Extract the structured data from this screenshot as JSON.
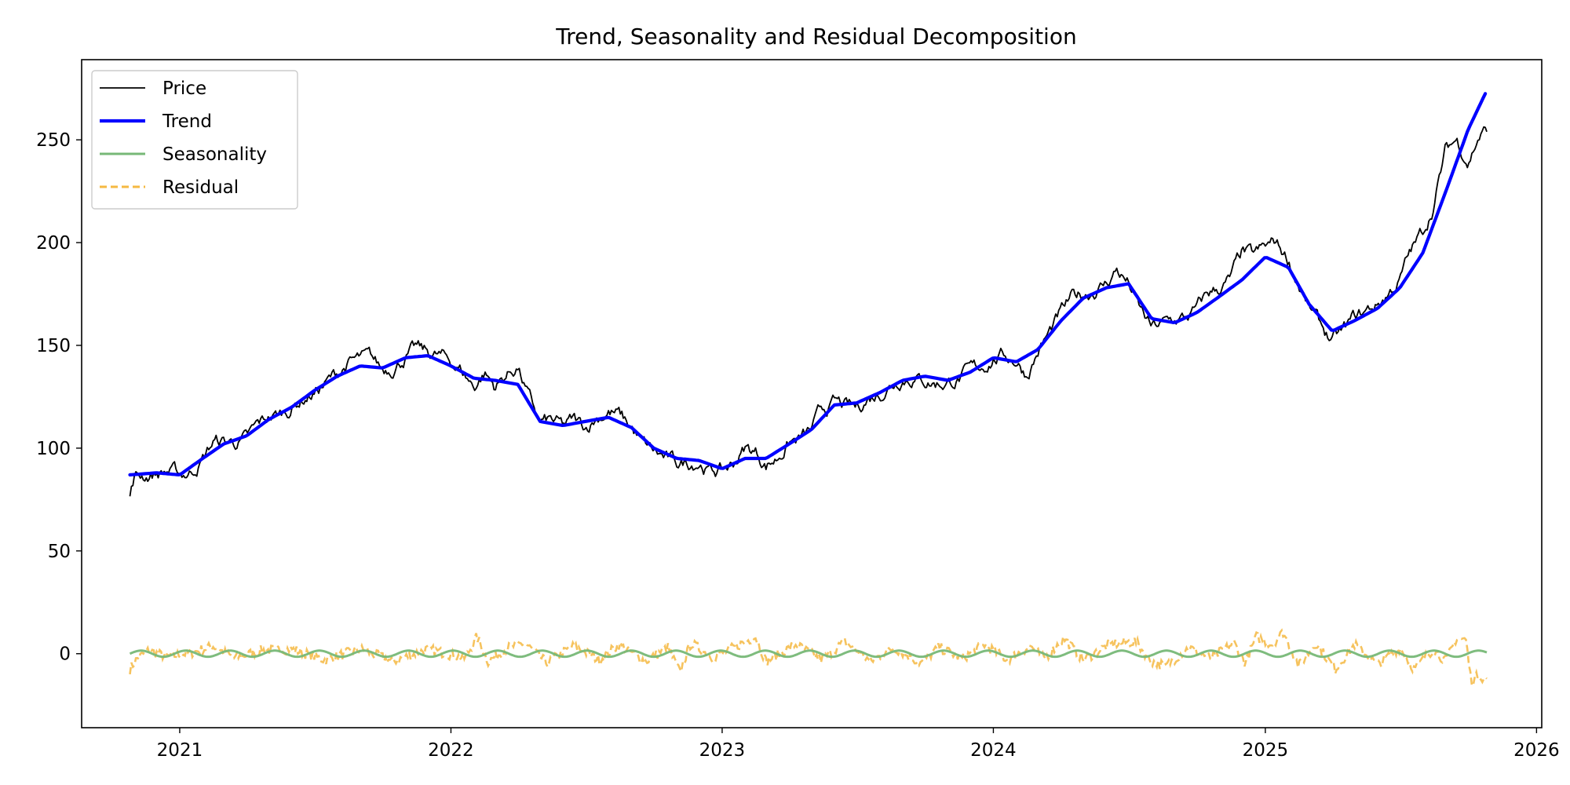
{
  "chart_data": {
    "type": "line",
    "title": "Trend, Seasonality and Residual Decomposition",
    "xlabel": "",
    "ylabel": "",
    "x_ticks": [
      "2021",
      "2022",
      "2023",
      "2024",
      "2025",
      "2026"
    ],
    "y_ticks": [
      "0",
      "50",
      "100",
      "150",
      "200",
      "250"
    ],
    "xlim": [
      "2020-08-22",
      "2026-01-08"
    ],
    "ylim": [
      -36,
      289
    ],
    "grid": false,
    "legend_position": "upper-left",
    "colors": {
      "price": "#000000",
      "trend": "#0000ff",
      "seasonality": "#77b877",
      "residual": "#f5b942"
    },
    "series": [
      {
        "name": "Price",
        "style": "solid",
        "points": [
          [
            "2020-10-26",
            77
          ],
          [
            "2020-10-28",
            80
          ],
          [
            "2020-11-01",
            86
          ],
          [
            "2020-11-15",
            86.8
          ],
          [
            "2020-12-01",
            88
          ],
          [
            "2020-12-15",
            89
          ],
          [
            "2021-01-01",
            87
          ],
          [
            "2021-01-15",
            88
          ],
          [
            "2021-02-01",
            95
          ],
          [
            "2021-02-15",
            103
          ],
          [
            "2021-03-01",
            103
          ],
          [
            "2021-03-15",
            103
          ],
          [
            "2021-04-01",
            104
          ],
          [
            "2021-04-15",
            110
          ],
          [
            "2021-05-01",
            115
          ],
          [
            "2021-05-15",
            116
          ],
          [
            "2021-06-01",
            120
          ],
          [
            "2021-06-15",
            124
          ],
          [
            "2021-07-01",
            127
          ],
          [
            "2021-07-15",
            131
          ],
          [
            "2021-08-01",
            136
          ],
          [
            "2021-08-15",
            141
          ],
          [
            "2021-09-01",
            143
          ],
          [
            "2021-09-15",
            143
          ],
          [
            "2021-10-01",
            138
          ],
          [
            "2021-10-15",
            140
          ],
          [
            "2021-11-01",
            145
          ],
          [
            "2021-11-15",
            148
          ],
          [
            "2021-12-01",
            146
          ],
          [
            "2021-12-15",
            145
          ],
          [
            "2022-01-01",
            142
          ],
          [
            "2022-01-15",
            138
          ],
          [
            "2022-02-01",
            130
          ],
          [
            "2022-02-15",
            137
          ],
          [
            "2022-03-01",
            130
          ],
          [
            "2022-03-15",
            135
          ],
          [
            "2022-04-01",
            140
          ],
          [
            "2022-04-15",
            125
          ],
          [
            "2022-05-01",
            112
          ],
          [
            "2022-05-15",
            113
          ],
          [
            "2022-06-01",
            110
          ],
          [
            "2022-06-15",
            113
          ],
          [
            "2022-07-01",
            110
          ],
          [
            "2022-07-15",
            115
          ],
          [
            "2022-08-01",
            118
          ],
          [
            "2022-08-15",
            116
          ],
          [
            "2022-09-01",
            110
          ],
          [
            "2022-09-15",
            102
          ],
          [
            "2022-10-01",
            98
          ],
          [
            "2022-10-15",
            95
          ],
          [
            "2022-11-01",
            92
          ],
          [
            "2022-11-15",
            93
          ],
          [
            "2022-12-01",
            94
          ],
          [
            "2022-12-15",
            89
          ],
          [
            "2023-01-01",
            89
          ],
          [
            "2023-01-15",
            92
          ],
          [
            "2023-02-01",
            100
          ],
          [
            "2023-02-15",
            98
          ],
          [
            "2023-03-01",
            92
          ],
          [
            "2023-03-15",
            95
          ],
          [
            "2023-04-01",
            103
          ],
          [
            "2023-04-15",
            104
          ],
          [
            "2023-05-01",
            108
          ],
          [
            "2023-05-15",
            118
          ],
          [
            "2023-06-01",
            122
          ],
          [
            "2023-06-15",
            120
          ],
          [
            "2023-07-01",
            119
          ],
          [
            "2023-07-15",
            124
          ],
          [
            "2023-08-01",
            127
          ],
          [
            "2023-08-15",
            131
          ],
          [
            "2023-09-01",
            135
          ],
          [
            "2023-09-15",
            135
          ],
          [
            "2023-10-01",
            133
          ],
          [
            "2023-10-15",
            132
          ],
          [
            "2023-11-01",
            132
          ],
          [
            "2023-11-15",
            134
          ],
          [
            "2023-12-01",
            137
          ],
          [
            "2023-12-15",
            139
          ],
          [
            "2024-01-01",
            144
          ],
          [
            "2024-01-15",
            145
          ],
          [
            "2024-02-01",
            143
          ],
          [
            "2024-02-15",
            136
          ],
          [
            "2024-03-01",
            147
          ],
          [
            "2024-03-15",
            155
          ],
          [
            "2024-04-01",
            165
          ],
          [
            "2024-04-15",
            172
          ],
          [
            "2024-05-01",
            175
          ],
          [
            "2024-05-15",
            177
          ],
          [
            "2024-06-01",
            180
          ],
          [
            "2024-06-15",
            187
          ],
          [
            "2024-07-01",
            180
          ],
          [
            "2024-07-15",
            168
          ],
          [
            "2024-08-01",
            158
          ],
          [
            "2024-08-15",
            160
          ],
          [
            "2024-09-01",
            162
          ],
          [
            "2024-09-15",
            163
          ],
          [
            "2024-10-01",
            167
          ],
          [
            "2024-10-15",
            175
          ],
          [
            "2024-11-01",
            178
          ],
          [
            "2024-11-15",
            182
          ],
          [
            "2024-12-01",
            195
          ],
          [
            "2024-12-15",
            193
          ],
          [
            "2025-01-01",
            197
          ],
          [
            "2025-01-15",
            200
          ],
          [
            "2025-02-01",
            192
          ],
          [
            "2025-02-15",
            180
          ],
          [
            "2025-03-01",
            168
          ],
          [
            "2025-03-15",
            160
          ],
          [
            "2025-04-01",
            152
          ],
          [
            "2025-04-15",
            156
          ],
          [
            "2025-05-01",
            163
          ],
          [
            "2025-05-15",
            166
          ],
          [
            "2025-06-01",
            170
          ],
          [
            "2025-06-15",
            175
          ],
          [
            "2025-07-01",
            182
          ],
          [
            "2025-07-15",
            195
          ],
          [
            "2025-08-01",
            205
          ],
          [
            "2025-08-15",
            218
          ],
          [
            "2025-09-01",
            245
          ],
          [
            "2025-09-15",
            250
          ],
          [
            "2025-10-01",
            240
          ],
          [
            "2025-10-15",
            252
          ],
          [
            "2025-10-26",
            255
          ]
        ]
      },
      {
        "name": "Trend",
        "style": "solid",
        "points": [
          [
            "2020-10-26",
            87
          ],
          [
            "2020-12-01",
            88
          ],
          [
            "2021-01-01",
            87
          ],
          [
            "2021-02-01",
            95
          ],
          [
            "2021-03-01",
            102
          ],
          [
            "2021-04-01",
            106
          ],
          [
            "2021-05-01",
            114
          ],
          [
            "2021-06-01",
            120
          ],
          [
            "2021-07-01",
            128
          ],
          [
            "2021-08-01",
            135
          ],
          [
            "2021-09-01",
            140
          ],
          [
            "2021-10-01",
            139
          ],
          [
            "2021-11-01",
            144
          ],
          [
            "2021-12-01",
            145
          ],
          [
            "2022-01-01",
            140
          ],
          [
            "2022-02-01",
            134
          ],
          [
            "2022-03-01",
            133
          ],
          [
            "2022-04-01",
            131
          ],
          [
            "2022-05-01",
            113
          ],
          [
            "2022-06-01",
            111
          ],
          [
            "2022-07-01",
            113
          ],
          [
            "2022-08-01",
            115
          ],
          [
            "2022-09-01",
            110
          ],
          [
            "2022-10-01",
            100
          ],
          [
            "2022-11-01",
            95
          ],
          [
            "2022-12-01",
            94
          ],
          [
            "2023-01-01",
            90
          ],
          [
            "2023-02-01",
            95
          ],
          [
            "2023-03-01",
            95
          ],
          [
            "2023-04-01",
            102
          ],
          [
            "2023-05-01",
            109
          ],
          [
            "2023-06-01",
            121
          ],
          [
            "2023-07-01",
            122
          ],
          [
            "2023-08-01",
            127
          ],
          [
            "2023-09-01",
            133
          ],
          [
            "2023-10-01",
            135
          ],
          [
            "2023-11-01",
            133
          ],
          [
            "2023-12-01",
            137
          ],
          [
            "2024-01-01",
            144
          ],
          [
            "2024-02-01",
            142
          ],
          [
            "2024-03-01",
            148
          ],
          [
            "2024-04-01",
            162
          ],
          [
            "2024-05-01",
            173
          ],
          [
            "2024-06-01",
            178
          ],
          [
            "2024-07-01",
            180
          ],
          [
            "2024-08-01",
            163
          ],
          [
            "2024-09-01",
            161
          ],
          [
            "2024-10-01",
            166
          ],
          [
            "2024-11-01",
            174
          ],
          [
            "2024-12-01",
            182
          ],
          [
            "2025-01-01",
            193
          ],
          [
            "2025-02-01",
            188
          ],
          [
            "2025-03-01",
            170
          ],
          [
            "2025-04-01",
            157
          ],
          [
            "2025-05-01",
            162
          ],
          [
            "2025-06-01",
            168
          ],
          [
            "2025-07-01",
            178
          ],
          [
            "2025-08-01",
            195
          ],
          [
            "2025-09-01",
            225
          ],
          [
            "2025-10-01",
            255
          ],
          [
            "2025-10-26",
            274
          ]
        ]
      },
      {
        "name": "Seasonality",
        "style": "solid",
        "amplitude": 1.5,
        "period_days": 60,
        "range": [
          "2020-10-26",
          "2025-10-26"
        ]
      },
      {
        "name": "Residual",
        "style": "dashed",
        "points": [
          [
            "2020-10-26",
            -10
          ],
          [
            "2020-11-05",
            -3
          ],
          [
            "2020-11-20",
            2
          ],
          [
            "2020-12-15",
            -2
          ],
          [
            "2021-01-20",
            1
          ],
          [
            "2021-02-15",
            5
          ],
          [
            "2021-03-15",
            -3
          ],
          [
            "2021-04-20",
            2
          ],
          [
            "2021-06-01",
            3
          ],
          [
            "2021-07-15",
            -4
          ],
          [
            "2021-09-01",
            3
          ],
          [
            "2021-10-15",
            -5
          ],
          [
            "2021-12-01",
            3
          ],
          [
            "2022-01-20",
            -3
          ],
          [
            "2022-02-05",
            11
          ],
          [
            "2022-02-20",
            -5
          ],
          [
            "2022-03-20",
            4
          ],
          [
            "2022-04-10",
            7
          ],
          [
            "2022-05-10",
            -6
          ],
          [
            "2022-06-15",
            5
          ],
          [
            "2022-07-20",
            -4
          ],
          [
            "2022-08-15",
            6
          ],
          [
            "2022-09-20",
            -5
          ],
          [
            "2022-10-20",
            4
          ],
          [
            "2022-11-05",
            -12
          ],
          [
            "2022-11-20",
            7
          ],
          [
            "2022-12-20",
            -3
          ],
          [
            "2023-01-20",
            5
          ],
          [
            "2023-02-15",
            11
          ],
          [
            "2023-03-01",
            -5
          ],
          [
            "2023-04-10",
            6
          ],
          [
            "2023-05-15",
            -4
          ],
          [
            "2023-06-15",
            8
          ],
          [
            "2023-07-20",
            -5
          ],
          [
            "2023-08-20",
            4
          ],
          [
            "2023-09-25",
            -6
          ],
          [
            "2023-10-20",
            4
          ],
          [
            "2023-11-20",
            -3
          ],
          [
            "2023-12-20",
            6
          ],
          [
            "2024-01-20",
            -4
          ],
          [
            "2024-02-20",
            5
          ],
          [
            "2024-03-10",
            -3
          ],
          [
            "2024-04-05",
            10
          ],
          [
            "2024-05-01",
            -4
          ],
          [
            "2024-06-05",
            6
          ],
          [
            "2024-07-10",
            8
          ],
          [
            "2024-08-01",
            -5
          ],
          [
            "2024-08-20",
            -8
          ],
          [
            "2024-09-20",
            4
          ],
          [
            "2024-10-20",
            -3
          ],
          [
            "2024-11-20",
            7
          ],
          [
            "2024-12-05",
            -6
          ],
          [
            "2024-12-20",
            11
          ],
          [
            "2025-01-10",
            6
          ],
          [
            "2025-01-25",
            14
          ],
          [
            "2025-02-15",
            -8
          ],
          [
            "2025-03-10",
            7
          ],
          [
            "2025-04-05",
            -10
          ],
          [
            "2025-05-01",
            6
          ],
          [
            "2025-06-01",
            -7
          ],
          [
            "2025-07-01",
            4
          ],
          [
            "2025-07-20",
            -10
          ],
          [
            "2025-08-15",
            3
          ],
          [
            "2025-09-01",
            -5
          ],
          [
            "2025-09-15",
            10
          ],
          [
            "2025-09-28",
            9
          ],
          [
            "2025-10-05",
            -18
          ],
          [
            "2025-10-15",
            -14
          ],
          [
            "2025-10-26",
            -17
          ]
        ]
      }
    ]
  }
}
